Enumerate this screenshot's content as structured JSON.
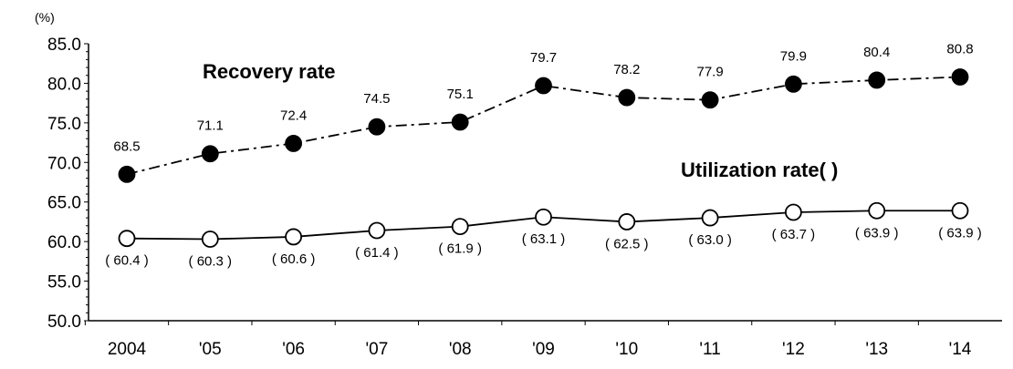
{
  "chart_data": {
    "type": "line",
    "unit": "(%)",
    "categories": [
      "2004",
      "'05",
      "'06",
      "'07",
      "'08",
      "'09",
      "'10",
      "'11",
      "'12",
      "'13",
      "'14"
    ],
    "ylim": [
      50.0,
      85.0
    ],
    "yticks": [
      "85.0",
      "80.0",
      "75.0",
      "70.0",
      "65.0",
      "60.0",
      "55.0",
      "50.0"
    ],
    "grid": false,
    "series": [
      {
        "name": "Recovery rate",
        "values": [
          68.5,
          71.1,
          72.4,
          74.5,
          75.1,
          79.7,
          78.2,
          77.9,
          79.9,
          80.4,
          80.8
        ],
        "labels": [
          "68.5",
          "71.1",
          "72.4",
          "74.5",
          "75.1",
          "79.7",
          "78.2",
          "77.9",
          "79.9",
          "80.4",
          "80.8"
        ],
        "line_style": "dash-dot",
        "marker": "filled-circle",
        "color": "#000000"
      },
      {
        "name": "Utilization rate( )",
        "values": [
          60.4,
          60.3,
          60.6,
          61.4,
          61.9,
          63.1,
          62.5,
          63.0,
          63.7,
          63.9,
          63.9
        ],
        "labels": [
          "( 60.4 )",
          "( 60.3 )",
          "( 60.6 )",
          "( 61.4 )",
          "( 61.9 )",
          "( 63.1 )",
          "( 62.5 )",
          "( 63.0 )",
          "( 63.7 )",
          "( 63.9 )",
          "( 63.9 )"
        ],
        "line_style": "solid",
        "marker": "open-circle",
        "color": "#000000"
      }
    ]
  }
}
